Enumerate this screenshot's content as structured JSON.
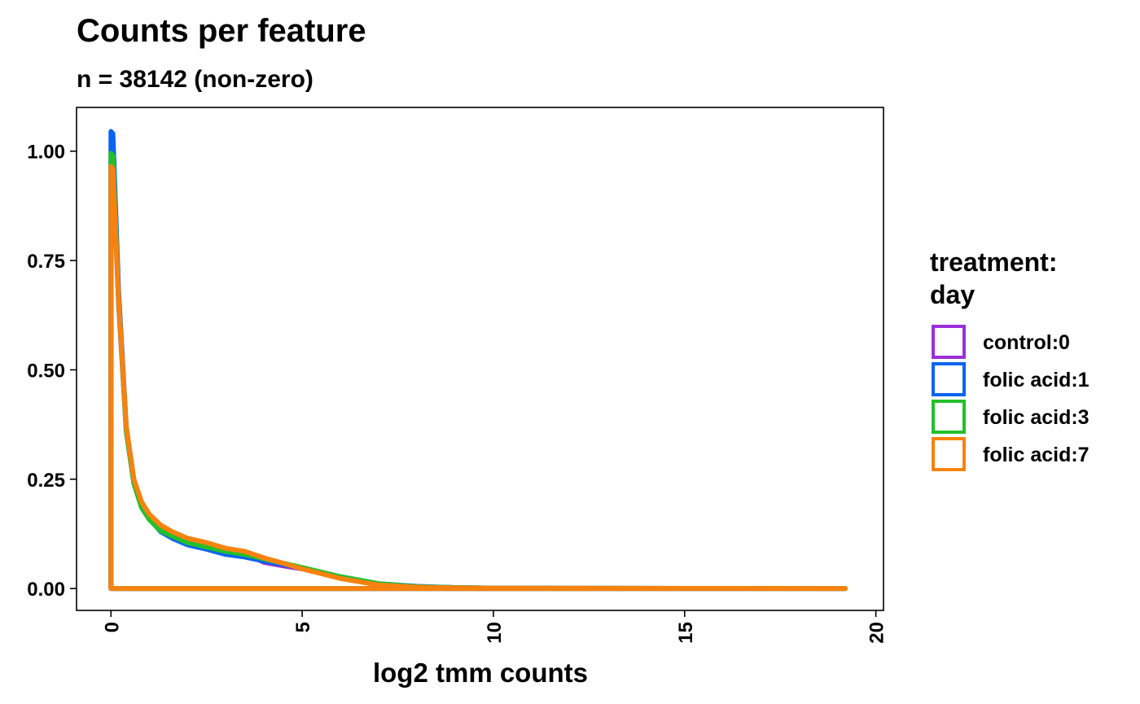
{
  "chart_data": {
    "type": "line",
    "title": "Counts per feature",
    "subtitle": "n = 38142 (non-zero)",
    "xlabel": "log2 tmm counts",
    "ylabel": "",
    "xlim": [
      -0.9,
      20.2
    ],
    "ylim": [
      -0.05,
      1.1
    ],
    "x_ticks": [
      0,
      5,
      10,
      15,
      20
    ],
    "x_tick_labels": [
      "0",
      "5",
      "10",
      "15",
      "20"
    ],
    "y_ticks": [
      0,
      0.25,
      0.5,
      0.75,
      1.0
    ],
    "y_tick_labels": [
      "0.00",
      "0.25",
      "0.50",
      "0.75",
      "1.00"
    ],
    "grid": false,
    "legend": {
      "title_lines": [
        "treatment:",
        "day"
      ],
      "placement": "right"
    },
    "series": [
      {
        "name": "control:0",
        "color": "#9b30d9",
        "x": [
          0,
          0,
          0.05,
          0.2,
          0.4,
          0.6,
          0.8,
          1.0,
          1.3,
          1.6,
          2.0,
          2.5,
          3.0,
          3.5,
          4.0,
          4.5,
          5.0,
          6.0,
          7.0,
          8.0,
          9.0,
          10.0,
          12.0,
          15.0,
          19.2,
          0
        ],
        "y": [
          0,
          0.98,
          0.97,
          0.65,
          0.36,
          0.24,
          0.19,
          0.165,
          0.14,
          0.125,
          0.11,
          0.1,
          0.09,
          0.08,
          0.06,
          0.052,
          0.045,
          0.025,
          0.01,
          0.004,
          0.002,
          0.001,
          0.0005,
          0.0002,
          0,
          0
        ]
      },
      {
        "name": "folic acid:1",
        "color": "#0a64f0",
        "x": [
          0,
          0,
          0.05,
          0.2,
          0.4,
          0.6,
          0.8,
          1.0,
          1.3,
          1.6,
          2.0,
          2.5,
          3.0,
          3.5,
          4.0,
          4.5,
          5.0,
          6.0,
          7.0,
          8.0,
          9.0,
          10.0,
          12.0,
          15.0,
          19.2,
          0
        ],
        "y": [
          0,
          1.045,
          1.04,
          0.68,
          0.37,
          0.245,
          0.19,
          0.16,
          0.13,
          0.115,
          0.1,
          0.09,
          0.078,
          0.072,
          0.063,
          0.055,
          0.047,
          0.027,
          0.011,
          0.005,
          0.002,
          0.001,
          0.0005,
          0.0002,
          0,
          0
        ]
      },
      {
        "name": "folic acid:3",
        "color": "#22c02a",
        "x": [
          0,
          0,
          0.05,
          0.2,
          0.4,
          0.6,
          0.8,
          1.0,
          1.3,
          1.6,
          2.0,
          2.5,
          3.0,
          3.5,
          4.0,
          4.5,
          5.0,
          6.0,
          7.0,
          8.0,
          9.0,
          10.0,
          12.0,
          15.0,
          19.2,
          0
        ],
        "y": [
          0,
          0.995,
          0.99,
          0.66,
          0.36,
          0.24,
          0.185,
          0.158,
          0.132,
          0.12,
          0.105,
          0.095,
          0.085,
          0.078,
          0.068,
          0.058,
          0.048,
          0.027,
          0.011,
          0.004,
          0.002,
          0.001,
          0.0005,
          0.0002,
          0,
          0
        ]
      },
      {
        "name": "folic acid:7",
        "color": "#f7820f",
        "x": [
          0,
          0,
          0.05,
          0.2,
          0.4,
          0.6,
          0.8,
          1.0,
          1.3,
          1.6,
          2.0,
          2.5,
          3.0,
          3.5,
          4.0,
          4.5,
          5.0,
          6.0,
          7.0,
          8.0,
          9.0,
          10.0,
          12.0,
          15.0,
          19.2,
          0
        ],
        "y": [
          0,
          0.965,
          0.96,
          0.66,
          0.37,
          0.25,
          0.198,
          0.17,
          0.145,
          0.13,
          0.115,
          0.105,
          0.092,
          0.085,
          0.07,
          0.058,
          0.045,
          0.023,
          0.008,
          0.003,
          0.0015,
          0.0008,
          0.0004,
          0.0002,
          0,
          0
        ]
      }
    ]
  }
}
